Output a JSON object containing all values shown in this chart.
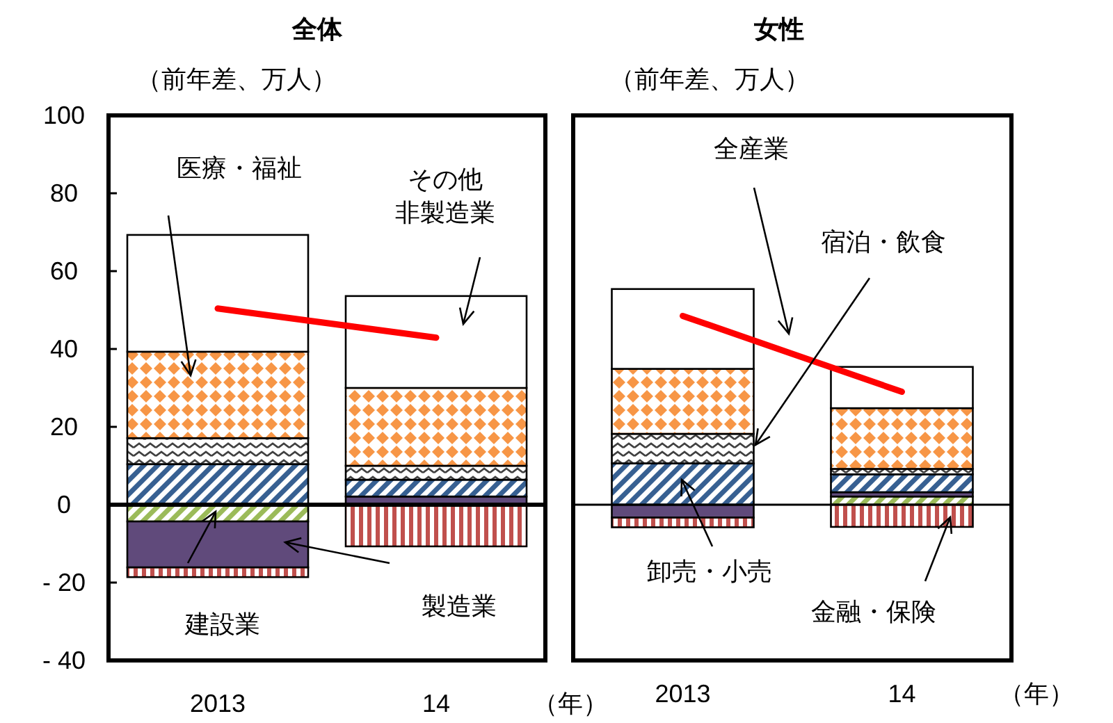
{
  "chart_data": [
    {
      "type": "bar",
      "stacked": true,
      "title": "全体",
      "subtitle": "（前年差、万人）",
      "xlabel": "（年）",
      "categories": [
        "2013",
        "14"
      ],
      "ylim": [
        -40,
        100
      ],
      "yticks": [
        100,
        80,
        60,
        40,
        20,
        0,
        {
          "value": -20,
          "label": "- 20"
        },
        {
          "value": -40,
          "label": "- 40"
        }
      ],
      "series": [
        {
          "color": "#9bbb59",
          "values": [
            -4.3,
            0
          ]
        },
        {
          "color": "#604a7b",
          "values": [
            -11.8,
            2.1
          ]
        },
        {
          "color": "#376092",
          "values": [
            10.4,
            4.3
          ]
        },
        {
          "color": "#404040",
          "values": [
            6.7,
            3.6
          ]
        },
        {
          "color": "#f79646",
          "values": [
            22.2,
            20
          ]
        },
        {
          "color": "#ffffff",
          "values": [
            30,
            23.6
          ]
        },
        {
          "color": "#c0504d",
          "values": [
            -2.5,
            -10.7
          ]
        },
        {
          "type": "line",
          "color": "#ff0000",
          "values": [
            50.4,
            42.9
          ]
        }
      ],
      "annotations": [
        "医療・福祉",
        "その他非製造業",
        "建設業",
        "製造業"
      ]
    },
    {
      "type": "bar",
      "stacked": true,
      "title": "女性",
      "subtitle": "（前年差、万人）",
      "xlabel": "（年）",
      "categories": [
        "2013",
        "14"
      ],
      "ylim": [
        -40,
        100
      ],
      "tick_labels": "x",
      "series": [
        {
          "color": "#9bbb59",
          "values": [
            0,
            2.1
          ]
        },
        {
          "color": "#604a7b",
          "values": [
            -3.3,
            1.1
          ]
        },
        {
          "color": "#376092",
          "values": [
            10.6,
            4.6
          ]
        },
        {
          "color": "#404040",
          "values": [
            7.6,
            1.4
          ]
        },
        {
          "color": "#f79646",
          "values": [
            16.7,
            15.6
          ]
        },
        {
          "color": "#ffffff",
          "values": [
            20.5,
            10.6
          ]
        },
        {
          "color": "#c0504d",
          "values": [
            -2.5,
            -5.7
          ]
        },
        {
          "type": "line",
          "color": "#ff0000",
          "values": [
            48.5,
            29.0
          ]
        }
      ],
      "annotations": [
        "全産業",
        "宿泊・飲食",
        "卸売・小売",
        "金融・保険"
      ]
    }
  ]
}
